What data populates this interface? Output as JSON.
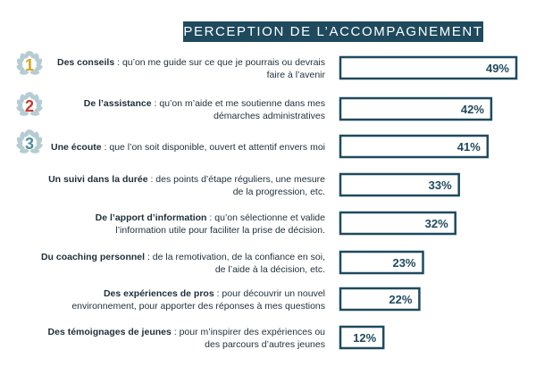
{
  "chart_data": {
    "type": "bar",
    "orientation": "horizontal",
    "title": "PERCEPTION DE L’ACCOMPAGNEMENT",
    "xlim": [
      0,
      49
    ],
    "value_suffix": "%",
    "categories": [
      {
        "rank": "1",
        "bold": "Des conseils",
        "rest": " : qu’on me guide sur ce que je pourrais ou devrais",
        "line2": "faire à l’avenir"
      },
      {
        "rank": "2",
        "bold": "De l’assistance",
        "rest": " : qu’on m’aide et me soutienne dans mes",
        "line2": "démarches administratives"
      },
      {
        "rank": "3",
        "bold": "Une écoute",
        "rest": " : que l’on soit disponible, ouvert et attentif envers moi",
        "line2": ""
      },
      {
        "rank": "",
        "bold": "Un suivi dans la durée",
        "rest": " : des points d’étape réguliers, une mesure",
        "line2": "de la progression, etc."
      },
      {
        "rank": "",
        "bold": "De l’apport d’information",
        "rest": " : qu’on sélectionne et valide",
        "line2": "l’information utile pour faciliter la prise de décision."
      },
      {
        "rank": "",
        "bold": "Du coaching personnel",
        "rest": " : de la remotivation, de la confiance en soi,",
        "line2": "de l’aide à la décision, etc."
      },
      {
        "rank": "",
        "bold": "Des expériences de pros",
        "rest": " : pour découvrir un nouvel",
        "line2": "environnement, pour apporter des réponses à mes questions"
      },
      {
        "rank": "",
        "bold": "Des témoignages de jeunes",
        "rest": " : pour m’inspirer des expériences ou",
        "line2": "des parcours d’autres jeunes"
      }
    ],
    "values": [
      49,
      42,
      41,
      33,
      32,
      23,
      22,
      12
    ]
  },
  "colors": {
    "title_bg": "#1f4a5e",
    "title_text": "#ffffff",
    "bar_border": "#1f4a5e",
    "bar_fill": "#ffffff",
    "value_text": "#1f4a5e",
    "label_text": "#1e2f3b",
    "laurel": "#b5cdd2",
    "rank_1": "#d9a21b",
    "rank_2": "#c8372f",
    "rank_3": "#4d8c98"
  }
}
